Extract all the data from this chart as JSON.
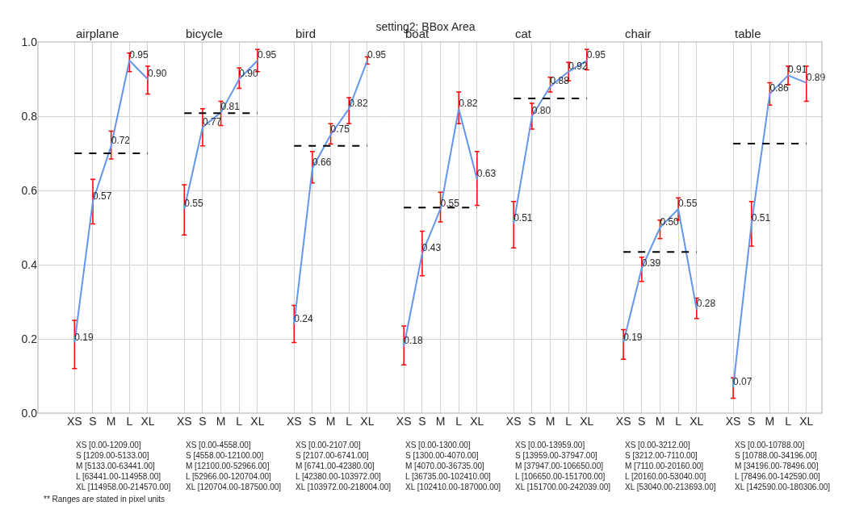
{
  "chart_data": [
    {
      "type": "line",
      "subtitle": "airplane",
      "categories": [
        "XS",
        "S",
        "M",
        "L",
        "XL"
      ],
      "color": "#6495ed",
      "values": [
        0.19,
        0.57,
        0.72,
        0.95,
        0.9
      ],
      "errors": [
        [
          0.12,
          0.25
        ],
        [
          0.51,
          0.63
        ],
        [
          0.685,
          0.76
        ],
        [
          0.92,
          0.97
        ],
        [
          0.86,
          0.935
        ]
      ],
      "value_labels": [
        "0.19",
        "0.57",
        "0.72",
        "0.95",
        "0.90"
      ],
      "ref_lines": [
        {
          "axis": "y",
          "value": 0.7,
          "color": "#000000",
          "line_style": "dashed"
        }
      ],
      "ylim": [
        0,
        1
      ],
      "yticks": [
        {
          "value": 0,
          "label": "0.0"
        },
        0.2,
        0.4,
        0.6,
        0.8,
        {
          "value": 1,
          "label": "1.0"
        }
      ],
      "grid": true,
      "annotations": [
        "XS [0.00-1209.00]",
        "S [1209.00-5133.00]",
        "M [5133.00-63441.00]",
        "L [63441.00-114958.00]",
        "XL [114958.00-214570.00]",
        "** Ranges are stated in pixel units"
      ]
    },
    {
      "type": "line",
      "subtitle": "bicycle",
      "categories": [
        "XS",
        "S",
        "M",
        "L",
        "XL"
      ],
      "color": "#6495ed",
      "values": [
        0.55,
        0.77,
        0.81,
        0.9,
        0.95
      ],
      "errors": [
        [
          0.48,
          0.615
        ],
        [
          0.72,
          0.82
        ],
        [
          0.775,
          0.84
        ],
        [
          0.875,
          0.93
        ],
        [
          0.92,
          0.98
        ]
      ],
      "value_labels": [
        "0.55",
        "0.77",
        "0.81",
        "0.90",
        "0.95"
      ],
      "ref_lines": [
        {
          "axis": "y",
          "value": 0.808,
          "color": "#000000",
          "line_style": "dashed"
        }
      ],
      "ylim": [
        0,
        1
      ],
      "yticks": [
        0,
        0.2,
        0.4,
        0.6,
        0.8,
        1
      ],
      "tick_labels": "x",
      "grid": true,
      "annotations": [
        "XS [0.00-4558.00]",
        "S [4558.00-12100.00]",
        "M [12100.00-52966.00]",
        "L [52966.00-120704.00]",
        "XL [120704.00-187500.00]"
      ]
    },
    {
      "type": "line",
      "subtitle": "bird",
      "categories": [
        "XS",
        "S",
        "M",
        "L",
        "XL"
      ],
      "color": "#6495ed",
      "values": [
        0.24,
        0.66,
        0.75,
        0.82,
        0.95
      ],
      "errors": [
        [
          0.19,
          0.29
        ],
        [
          0.62,
          0.705
        ],
        [
          0.725,
          0.78
        ],
        [
          0.78,
          0.85
        ],
        [
          0.94,
          0.96
        ]
      ],
      "value_labels": [
        "0.24",
        "0.66",
        "0.75",
        "0.82",
        "0.95"
      ],
      "ref_lines": [
        {
          "axis": "y",
          "value": 0.72,
          "color": "#000000",
          "line_style": "dashed"
        }
      ],
      "ylim": [
        0,
        1
      ],
      "yticks": [
        0,
        0.2,
        0.4,
        0.6,
        0.8,
        1
      ],
      "tick_labels": "x",
      "grid": true,
      "annotations": [
        "XS [0.00-2107.00]",
        "S [2107.00-6741.00]",
        "M [6741.00-42380.00]",
        "L [42380.00-103972.00]",
        "XL [103972.00-218004.00]"
      ]
    },
    {
      "type": "line",
      "title": "setting2: BBox Area",
      "subtitle": "boat",
      "categories": [
        "XS",
        "S",
        "M",
        "L",
        "XL"
      ],
      "color": "#6495ed",
      "values": [
        0.18,
        0.43,
        0.55,
        0.82,
        0.63
      ],
      "errors": [
        [
          0.13,
          0.235
        ],
        [
          0.37,
          0.49
        ],
        [
          0.515,
          0.595
        ],
        [
          0.78,
          0.865
        ],
        [
          0.56,
          0.705
        ]
      ],
      "value_labels": [
        "0.18",
        "0.43",
        "0.55",
        "0.82",
        "0.63"
      ],
      "ref_lines": [
        {
          "axis": "y",
          "value": 0.554,
          "color": "#000000",
          "line_style": "dashed"
        }
      ],
      "ylim": [
        0,
        1
      ],
      "yticks": [
        0,
        0.2,
        0.4,
        0.6,
        0.8,
        1
      ],
      "tick_labels": "x",
      "grid": true,
      "annotations": [
        "XS [0.00-1300.00]",
        "S [1300.00-4070.00]",
        "M [4070.00-36735.00]",
        "L [36735.00-102410.00]",
        "XL [102410.00-187000.00]"
      ]
    },
    {
      "type": "line",
      "subtitle": "cat",
      "categories": [
        "XS",
        "S",
        "M",
        "L",
        "XL"
      ],
      "color": "#6495ed",
      "values": [
        0.51,
        0.8,
        0.88,
        0.92,
        0.95
      ],
      "errors": [
        [
          0.445,
          0.57
        ],
        [
          0.765,
          0.835
        ],
        [
          0.865,
          0.905
        ],
        [
          0.895,
          0.945
        ],
        [
          0.925,
          0.98
        ]
      ],
      "value_labels": [
        "0.51",
        "0.80",
        "0.88",
        "0.92",
        "0.95"
      ],
      "ref_lines": [
        {
          "axis": "y",
          "value": 0.848,
          "color": "#000000",
          "line_style": "dashed"
        }
      ],
      "ylim": [
        0,
        1
      ],
      "yticks": [
        0,
        0.2,
        0.4,
        0.6,
        0.8,
        1
      ],
      "tick_labels": "x",
      "grid": true,
      "annotations": [
        "XS [0.00-13959.00]",
        "S [13959.00-37947.00]",
        "M [37947.00-106650.00]",
        "L [106650.00-151700.00]",
        "XL [151700.00-242039.00]"
      ]
    },
    {
      "type": "line",
      "subtitle": "chair",
      "categories": [
        "XS",
        "S",
        "M",
        "L",
        "XL"
      ],
      "color": "#6495ed",
      "values": [
        0.19,
        0.39,
        0.5,
        0.55,
        0.28
      ],
      "errors": [
        [
          0.145,
          0.225
        ],
        [
          0.355,
          0.42
        ],
        [
          0.47,
          0.52
        ],
        [
          0.52,
          0.58
        ],
        [
          0.255,
          0.31
        ]
      ],
      "value_labels": [
        "0.19",
        "0.39",
        "0.50",
        "0.55",
        "0.28"
      ],
      "ref_lines": [
        {
          "axis": "y",
          "value": 0.434,
          "color": "#000000",
          "line_style": "dashed"
        }
      ],
      "ylim": [
        0,
        1
      ],
      "yticks": [
        0,
        0.2,
        0.4,
        0.6,
        0.8,
        1
      ],
      "tick_labels": "x",
      "grid": true,
      "annotations": [
        "XS [0.00-3212.00]",
        "S [3212.00-7110.00]",
        "M [7110.00-20160.00]",
        "L [20160.00-53040.00]",
        "XL [53040.00-213693.00]"
      ]
    },
    {
      "type": "line",
      "subtitle": "table",
      "categories": [
        "XS",
        "S",
        "M",
        "L",
        "XL"
      ],
      "color": "#6495ed",
      "values": [
        0.07,
        0.51,
        0.86,
        0.91,
        0.89
      ],
      "errors": [
        [
          0.04,
          0.095
        ],
        [
          0.45,
          0.57
        ],
        [
          0.83,
          0.89
        ],
        [
          0.885,
          0.935
        ],
        [
          0.84,
          0.935
        ]
      ],
      "value_labels": [
        "0.07",
        "0.51",
        "0.86",
        "0.91",
        "0.89"
      ],
      "ref_lines": [
        {
          "axis": "y",
          "value": 0.726,
          "color": "#000000",
          "line_style": "dashed"
        }
      ],
      "ylim": [
        0,
        1
      ],
      "yticks": [
        0,
        0.2,
        0.4,
        0.6,
        0.8,
        1
      ],
      "tick_labels": "x",
      "grid": true,
      "annotations": [
        "XS [0.00-10788.00]",
        "S [10788.00-34196.00]",
        "M [34196.00-78496.00]",
        "L [78496.00-142590.00]",
        "XL [142590.00-180306.00]"
      ]
    }
  ]
}
